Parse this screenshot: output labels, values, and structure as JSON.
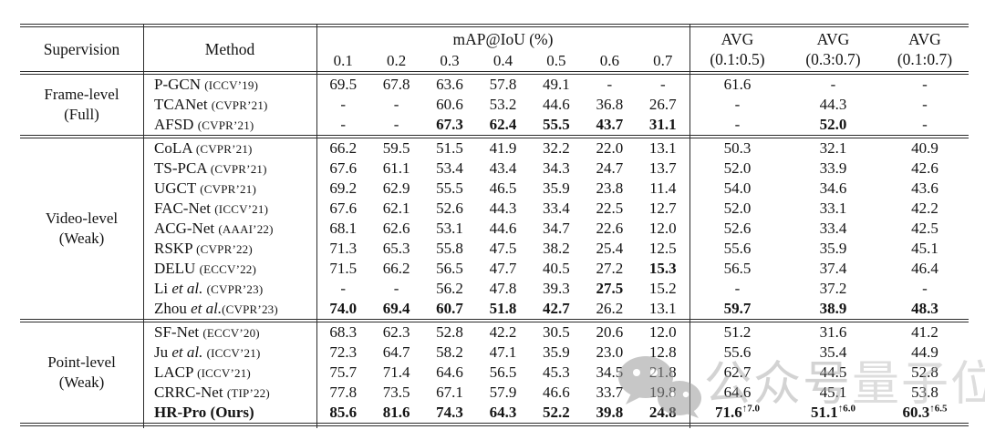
{
  "table": {
    "header": {
      "supervision": "Supervision",
      "method": "Method",
      "map_group": "mAP@IoU (%)",
      "ious": [
        "0.1",
        "0.2",
        "0.3",
        "0.4",
        "0.5",
        "0.6",
        "0.7"
      ],
      "avgs": [
        {
          "l1": "AVG",
          "l2": "(0.1:0.5)"
        },
        {
          "l1": "AVG",
          "l2": "(0.3:0.7)"
        },
        {
          "l1": "AVG",
          "l2": "(0.1:0.7)"
        }
      ]
    },
    "groups": [
      {
        "supervision_l1": "Frame-level",
        "supervision_l2": "(Full)",
        "rows": [
          {
            "pre": "P-GCN ",
            "it": "",
            "post": "",
            "venue": "(ICCV’19)",
            "bold_name": false,
            "cells": [
              "69.5",
              "67.8",
              "63.6",
              "57.8",
              "49.1",
              "-",
              "-",
              "61.6",
              "-",
              "-"
            ],
            "bold": [
              0,
              0,
              0,
              0,
              0,
              0,
              0,
              0,
              0,
              0
            ],
            "sups": [
              "",
              "",
              "",
              "",
              "",
              "",
              "",
              "",
              "",
              ""
            ]
          },
          {
            "pre": "TCANet ",
            "it": "",
            "post": "",
            "venue": "(CVPR’21)",
            "bold_name": false,
            "cells": [
              "-",
              "-",
              "60.6",
              "53.2",
              "44.6",
              "36.8",
              "26.7",
              "-",
              "44.3",
              "-"
            ],
            "bold": [
              0,
              0,
              0,
              0,
              0,
              0,
              0,
              0,
              0,
              0
            ],
            "sups": [
              "",
              "",
              "",
              "",
              "",
              "",
              "",
              "",
              "",
              ""
            ]
          },
          {
            "pre": "AFSD ",
            "it": "",
            "post": "",
            "venue": "(CVPR’21)",
            "bold_name": false,
            "cells": [
              "-",
              "-",
              "67.3",
              "62.4",
              "55.5",
              "43.7",
              "31.1",
              "-",
              "52.0",
              "-"
            ],
            "bold": [
              0,
              0,
              1,
              1,
              1,
              1,
              1,
              0,
              1,
              0
            ],
            "sups": [
              "",
              "",
              "",
              "",
              "",
              "",
              "",
              "",
              "",
              ""
            ]
          }
        ]
      },
      {
        "supervision_l1": "Video-level",
        "supervision_l2": "(Weak)",
        "rows": [
          {
            "pre": "CoLA ",
            "it": "",
            "post": "",
            "venue": "(CVPR’21)",
            "bold_name": false,
            "cells": [
              "66.2",
              "59.5",
              "51.5",
              "41.9",
              "32.2",
              "22.0",
              "13.1",
              "50.3",
              "32.1",
              "40.9"
            ],
            "bold": [
              0,
              0,
              0,
              0,
              0,
              0,
              0,
              0,
              0,
              0
            ],
            "sups": [
              "",
              "",
              "",
              "",
              "",
              "",
              "",
              "",
              "",
              ""
            ]
          },
          {
            "pre": "TS-PCA ",
            "it": "",
            "post": "",
            "venue": "(CVPR’21)",
            "bold_name": false,
            "cells": [
              "67.6",
              "61.1",
              "53.4",
              "43.4",
              "34.3",
              "24.7",
              "13.7",
              "52.0",
              "33.9",
              "42.6"
            ],
            "bold": [
              0,
              0,
              0,
              0,
              0,
              0,
              0,
              0,
              0,
              0
            ],
            "sups": [
              "",
              "",
              "",
              "",
              "",
              "",
              "",
              "",
              "",
              ""
            ]
          },
          {
            "pre": "UGCT ",
            "it": "",
            "post": "",
            "venue": "(CVPR’21)",
            "bold_name": false,
            "cells": [
              "69.2",
              "62.9",
              "55.5",
              "46.5",
              "35.9",
              "23.8",
              "11.4",
              "54.0",
              "34.6",
              "43.6"
            ],
            "bold": [
              0,
              0,
              0,
              0,
              0,
              0,
              0,
              0,
              0,
              0
            ],
            "sups": [
              "",
              "",
              "",
              "",
              "",
              "",
              "",
              "",
              "",
              ""
            ]
          },
          {
            "pre": "FAC-Net ",
            "it": "",
            "post": "",
            "venue": "(ICCV’21)",
            "bold_name": false,
            "cells": [
              "67.6",
              "62.1",
              "52.6",
              "44.3",
              "33.4",
              "22.5",
              "12.7",
              "52.0",
              "33.1",
              "42.2"
            ],
            "bold": [
              0,
              0,
              0,
              0,
              0,
              0,
              0,
              0,
              0,
              0
            ],
            "sups": [
              "",
              "",
              "",
              "",
              "",
              "",
              "",
              "",
              "",
              ""
            ]
          },
          {
            "pre": "ACG-Net ",
            "it": "",
            "post": "",
            "venue": "(AAAI’22)",
            "bold_name": false,
            "cells": [
              "68.1",
              "62.6",
              "53.1",
              "44.6",
              "34.7",
              "22.6",
              "12.0",
              "52.6",
              "33.4",
              "42.5"
            ],
            "bold": [
              0,
              0,
              0,
              0,
              0,
              0,
              0,
              0,
              0,
              0
            ],
            "sups": [
              "",
              "",
              "",
              "",
              "",
              "",
              "",
              "",
              "",
              ""
            ]
          },
          {
            "pre": "RSKP ",
            "it": "",
            "post": "",
            "venue": "(CVPR’22)",
            "bold_name": false,
            "cells": [
              "71.3",
              "65.3",
              "55.8",
              "47.5",
              "38.2",
              "25.4",
              "12.5",
              "55.6",
              "35.9",
              "45.1"
            ],
            "bold": [
              0,
              0,
              0,
              0,
              0,
              0,
              0,
              0,
              0,
              0
            ],
            "sups": [
              "",
              "",
              "",
              "",
              "",
              "",
              "",
              "",
              "",
              ""
            ]
          },
          {
            "pre": "DELU ",
            "it": "",
            "post": "",
            "venue": "(ECCV’22)",
            "bold_name": false,
            "cells": [
              "71.5",
              "66.2",
              "56.5",
              "47.7",
              "40.5",
              "27.2",
              "15.3",
              "56.5",
              "37.4",
              "46.4"
            ],
            "bold": [
              0,
              0,
              0,
              0,
              0,
              0,
              1,
              0,
              0,
              0
            ],
            "sups": [
              "",
              "",
              "",
              "",
              "",
              "",
              "",
              "",
              "",
              ""
            ]
          },
          {
            "pre": "Li ",
            "it": "et al.",
            "post": " ",
            "venue": "(CVPR’23)",
            "bold_name": false,
            "cells": [
              "-",
              "-",
              "56.2",
              "47.8",
              "39.3",
              "27.5",
              "15.2",
              "-",
              "37.2",
              "-"
            ],
            "bold": [
              0,
              0,
              0,
              0,
              0,
              1,
              0,
              0,
              0,
              0
            ],
            "sups": [
              "",
              "",
              "",
              "",
              "",
              "",
              "",
              "",
              "",
              ""
            ]
          },
          {
            "pre": "Zhou ",
            "it": "et al.",
            "post": "",
            "venue": "(CVPR’23)",
            "bold_name": false,
            "cells": [
              "74.0",
              "69.4",
              "60.7",
              "51.8",
              "42.7",
              "26.2",
              "13.1",
              "59.7",
              "38.9",
              "48.3"
            ],
            "bold": [
              1,
              1,
              1,
              1,
              1,
              0,
              0,
              1,
              1,
              1
            ],
            "sups": [
              "",
              "",
              "",
              "",
              "",
              "",
              "",
              "",
              "",
              ""
            ]
          }
        ]
      },
      {
        "supervision_l1": "Point-level",
        "supervision_l2": "(Weak)",
        "rows": [
          {
            "pre": "SF-Net ",
            "it": "",
            "post": "",
            "venue": "(ECCV’20)",
            "bold_name": false,
            "cells": [
              "68.3",
              "62.3",
              "52.8",
              "42.2",
              "30.5",
              "20.6",
              "12.0",
              "51.2",
              "31.6",
              "41.2"
            ],
            "bold": [
              0,
              0,
              0,
              0,
              0,
              0,
              0,
              0,
              0,
              0
            ],
            "sups": [
              "",
              "",
              "",
              "",
              "",
              "",
              "",
              "",
              "",
              ""
            ]
          },
          {
            "pre": "Ju ",
            "it": "et al.",
            "post": " ",
            "venue": "(ICCV’21)",
            "bold_name": false,
            "cells": [
              "72.3",
              "64.7",
              "58.2",
              "47.1",
              "35.9",
              "23.0",
              "12.8",
              "55.6",
              "35.4",
              "44.9"
            ],
            "bold": [
              0,
              0,
              0,
              0,
              0,
              0,
              0,
              0,
              0,
              0
            ],
            "sups": [
              "",
              "",
              "",
              "",
              "",
              "",
              "",
              "",
              "",
              ""
            ]
          },
          {
            "pre": "LACP ",
            "it": "",
            "post": "",
            "venue": "(ICCV’21)",
            "bold_name": false,
            "cells": [
              "75.7",
              "71.4",
              "64.6",
              "56.5",
              "45.3",
              "34.5",
              "21.8",
              "62.7",
              "44.5",
              "52.8"
            ],
            "bold": [
              0,
              0,
              0,
              0,
              0,
              0,
              0,
              0,
              0,
              0
            ],
            "sups": [
              "",
              "",
              "",
              "",
              "",
              "",
              "",
              "",
              "",
              ""
            ]
          },
          {
            "pre": "CRRC-Net ",
            "it": "",
            "post": "",
            "venue": "(TIP’22)",
            "bold_name": false,
            "cells": [
              "77.8",
              "73.5",
              "67.1",
              "57.9",
              "46.6",
              "33.7",
              "19.8",
              "64.6",
              "45.1",
              "53.8"
            ],
            "bold": [
              0,
              0,
              0,
              0,
              0,
              0,
              0,
              0,
              0,
              0
            ],
            "sups": [
              "",
              "",
              "",
              "",
              "",
              "",
              "",
              "",
              "",
              ""
            ]
          },
          {
            "pre": "HR-Pro (Ours)",
            "it": "",
            "post": "",
            "venue": "",
            "bold_name": true,
            "cells": [
              "85.6",
              "81.6",
              "74.3",
              "64.3",
              "52.2",
              "39.8",
              "24.8",
              "71.6",
              "51.1",
              "60.3"
            ],
            "bold": [
              1,
              1,
              1,
              1,
              1,
              1,
              1,
              1,
              1,
              1
            ],
            "sups": [
              "",
              "",
              "",
              "",
              "",
              "",
              "",
              "↑7.0",
              "↑6.0",
              "↑6.5"
            ]
          }
        ]
      }
    ]
  },
  "watermark": {
    "icon": "wechat-logo",
    "text1": "公众号",
    "text2": "量子位",
    "color": "#a9a9a9"
  },
  "colors": {
    "rule": "#2b2b2b",
    "text": "#141414",
    "background": "#ffffff"
  }
}
